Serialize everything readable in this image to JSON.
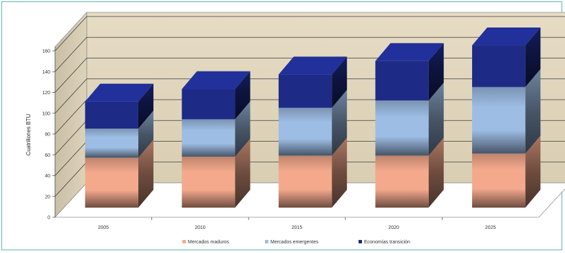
{
  "chart_data": {
    "type": "bar",
    "stacked": true,
    "three_d": true,
    "title": "",
    "xlabel": "",
    "ylabel": "Cuatrillones BTU",
    "categories": [
      "2005",
      "2010",
      "2015",
      "2020",
      "2025"
    ],
    "ylim": [
      0,
      160
    ],
    "yticks": [
      0,
      20,
      40,
      60,
      80,
      100,
      120,
      140,
      160
    ],
    "yticks_display": [
      "0",
      "20",
      "40",
      "60",
      "80",
      "100",
      "120",
      "140",
      "160"
    ],
    "grid": true,
    "legend_position": "bottom",
    "series": [
      {
        "name": "Mercados maduros",
        "values": [
          48,
          49,
          50,
          50,
          52
        ],
        "color": "#f4a98c"
      },
      {
        "name": "Mercados emergentes",
        "values": [
          28,
          36,
          46,
          53,
          64
        ],
        "color": "#9dbde4"
      },
      {
        "name": "Economías transición",
        "values": [
          26,
          29,
          32,
          38,
          40
        ],
        "color": "#1d2a86"
      }
    ]
  }
}
